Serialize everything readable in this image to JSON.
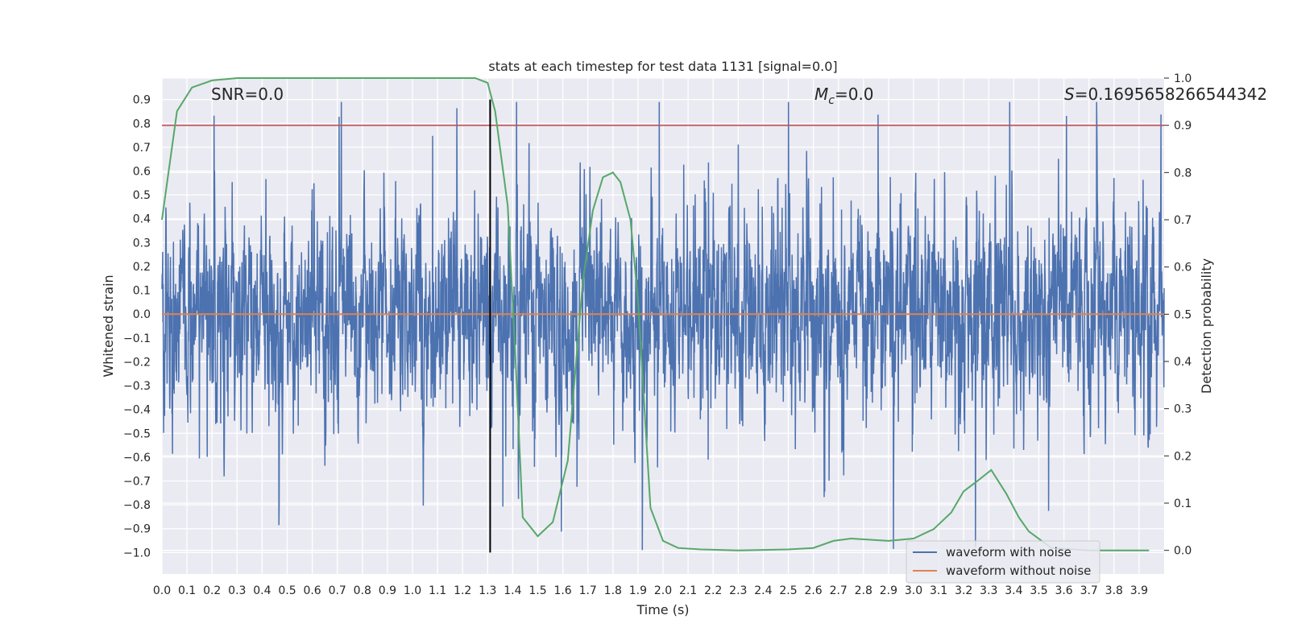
{
  "chart_data": {
    "type": "line",
    "title": "stats at each timestep for test data 1131 [signal=0.0]",
    "xlabel": "Time (s)",
    "ylabel_left": "Whitened strain",
    "ylabel_right": "Detection probability",
    "xlim": [
      0.0,
      4.0
    ],
    "ylim_left": [
      -1.09,
      0.99
    ],
    "ylim_right": [
      -0.05,
      1.0
    ],
    "x_ticks": [
      "0.0",
      "0.1",
      "0.2",
      "0.3",
      "0.4",
      "0.5",
      "0.6",
      "0.7",
      "0.8",
      "0.9",
      "1.0",
      "1.1",
      "1.2",
      "1.3",
      "1.4",
      "1.5",
      "1.6",
      "1.7",
      "1.8",
      "1.9",
      "2.0",
      "2.1",
      "2.2",
      "2.3",
      "2.4",
      "2.5",
      "2.6",
      "2.7",
      "2.8",
      "2.9",
      "3.0",
      "3.1",
      "3.2",
      "3.3",
      "3.4",
      "3.5",
      "3.6",
      "3.7",
      "3.8",
      "3.9"
    ],
    "y_ticks_left": [
      "0.9",
      "0.8",
      "0.7",
      "0.6",
      "0.5",
      "0.4",
      "0.3",
      "0.2",
      "0.1",
      "0.0",
      "−0.1",
      "−0.2",
      "−0.3",
      "−0.4",
      "−0.5",
      "−0.6",
      "−0.7",
      "−0.8",
      "−0.9",
      "−1.0"
    ],
    "y_ticks_right": [
      "1.0",
      "0.9",
      "0.8",
      "0.7",
      "0.6",
      "0.5",
      "0.4",
      "0.3",
      "0.2",
      "0.1",
      "0.0"
    ],
    "annotations": {
      "snr": "SNR=0.0",
      "mc_symbol": "M",
      "mc_sub": "c",
      "mc_value": "=0.0",
      "s_symbol": "S",
      "s_value": "=0.1695658266544342"
    },
    "marker_line_x": 1.31,
    "threshold_probability": 0.9,
    "series": [
      {
        "name": "waveform with noise",
        "color": "#4c72b0",
        "axis": "left",
        "description": "noisy whitened strain, approx. ±0.3 with spikes to ±0.9",
        "seed": 1131,
        "envelope": 0.24
      },
      {
        "name": "waveform without noise",
        "color": "#dd8452",
        "axis": "left",
        "values_constant": 0.0
      },
      {
        "name": "detection probability",
        "color": "#55a868",
        "axis": "right",
        "x": [
          0.0,
          0.06,
          0.12,
          0.2,
          0.3,
          0.5,
          0.8,
          1.0,
          1.2,
          1.25,
          1.3,
          1.33,
          1.38,
          1.41,
          1.44,
          1.5,
          1.56,
          1.62,
          1.68,
          1.72,
          1.76,
          1.8,
          1.83,
          1.87,
          1.9,
          1.95,
          2.0,
          2.06,
          2.15,
          2.3,
          2.5,
          2.6,
          2.68,
          2.75,
          2.9,
          3.0,
          3.08,
          3.15,
          3.2,
          3.25,
          3.31,
          3.37,
          3.42,
          3.46,
          3.55,
          3.7,
          3.94
        ],
        "y": [
          0.7,
          0.93,
          0.98,
          0.995,
          1.0,
          1.0,
          1.0,
          1.0,
          1.0,
          1.0,
          0.99,
          0.93,
          0.73,
          0.42,
          0.07,
          0.03,
          0.06,
          0.19,
          0.57,
          0.72,
          0.79,
          0.8,
          0.78,
          0.7,
          0.53,
          0.09,
          0.02,
          0.005,
          0.002,
          0.0,
          0.002,
          0.005,
          0.02,
          0.025,
          0.02,
          0.025,
          0.045,
          0.08,
          0.125,
          0.145,
          0.17,
          0.12,
          0.07,
          0.04,
          0.005,
          0.0,
          0.0
        ]
      },
      {
        "name": "threshold",
        "color": "#c44e52",
        "axis": "right",
        "values_constant": 0.9
      }
    ],
    "legend": {
      "position": "bottom-right",
      "entries": [
        {
          "label": "waveform with noise",
          "color": "#4c72b0"
        },
        {
          "label": "waveform without noise",
          "color": "#dd8452"
        }
      ]
    },
    "grid": true,
    "background": "#eaeaf2"
  }
}
